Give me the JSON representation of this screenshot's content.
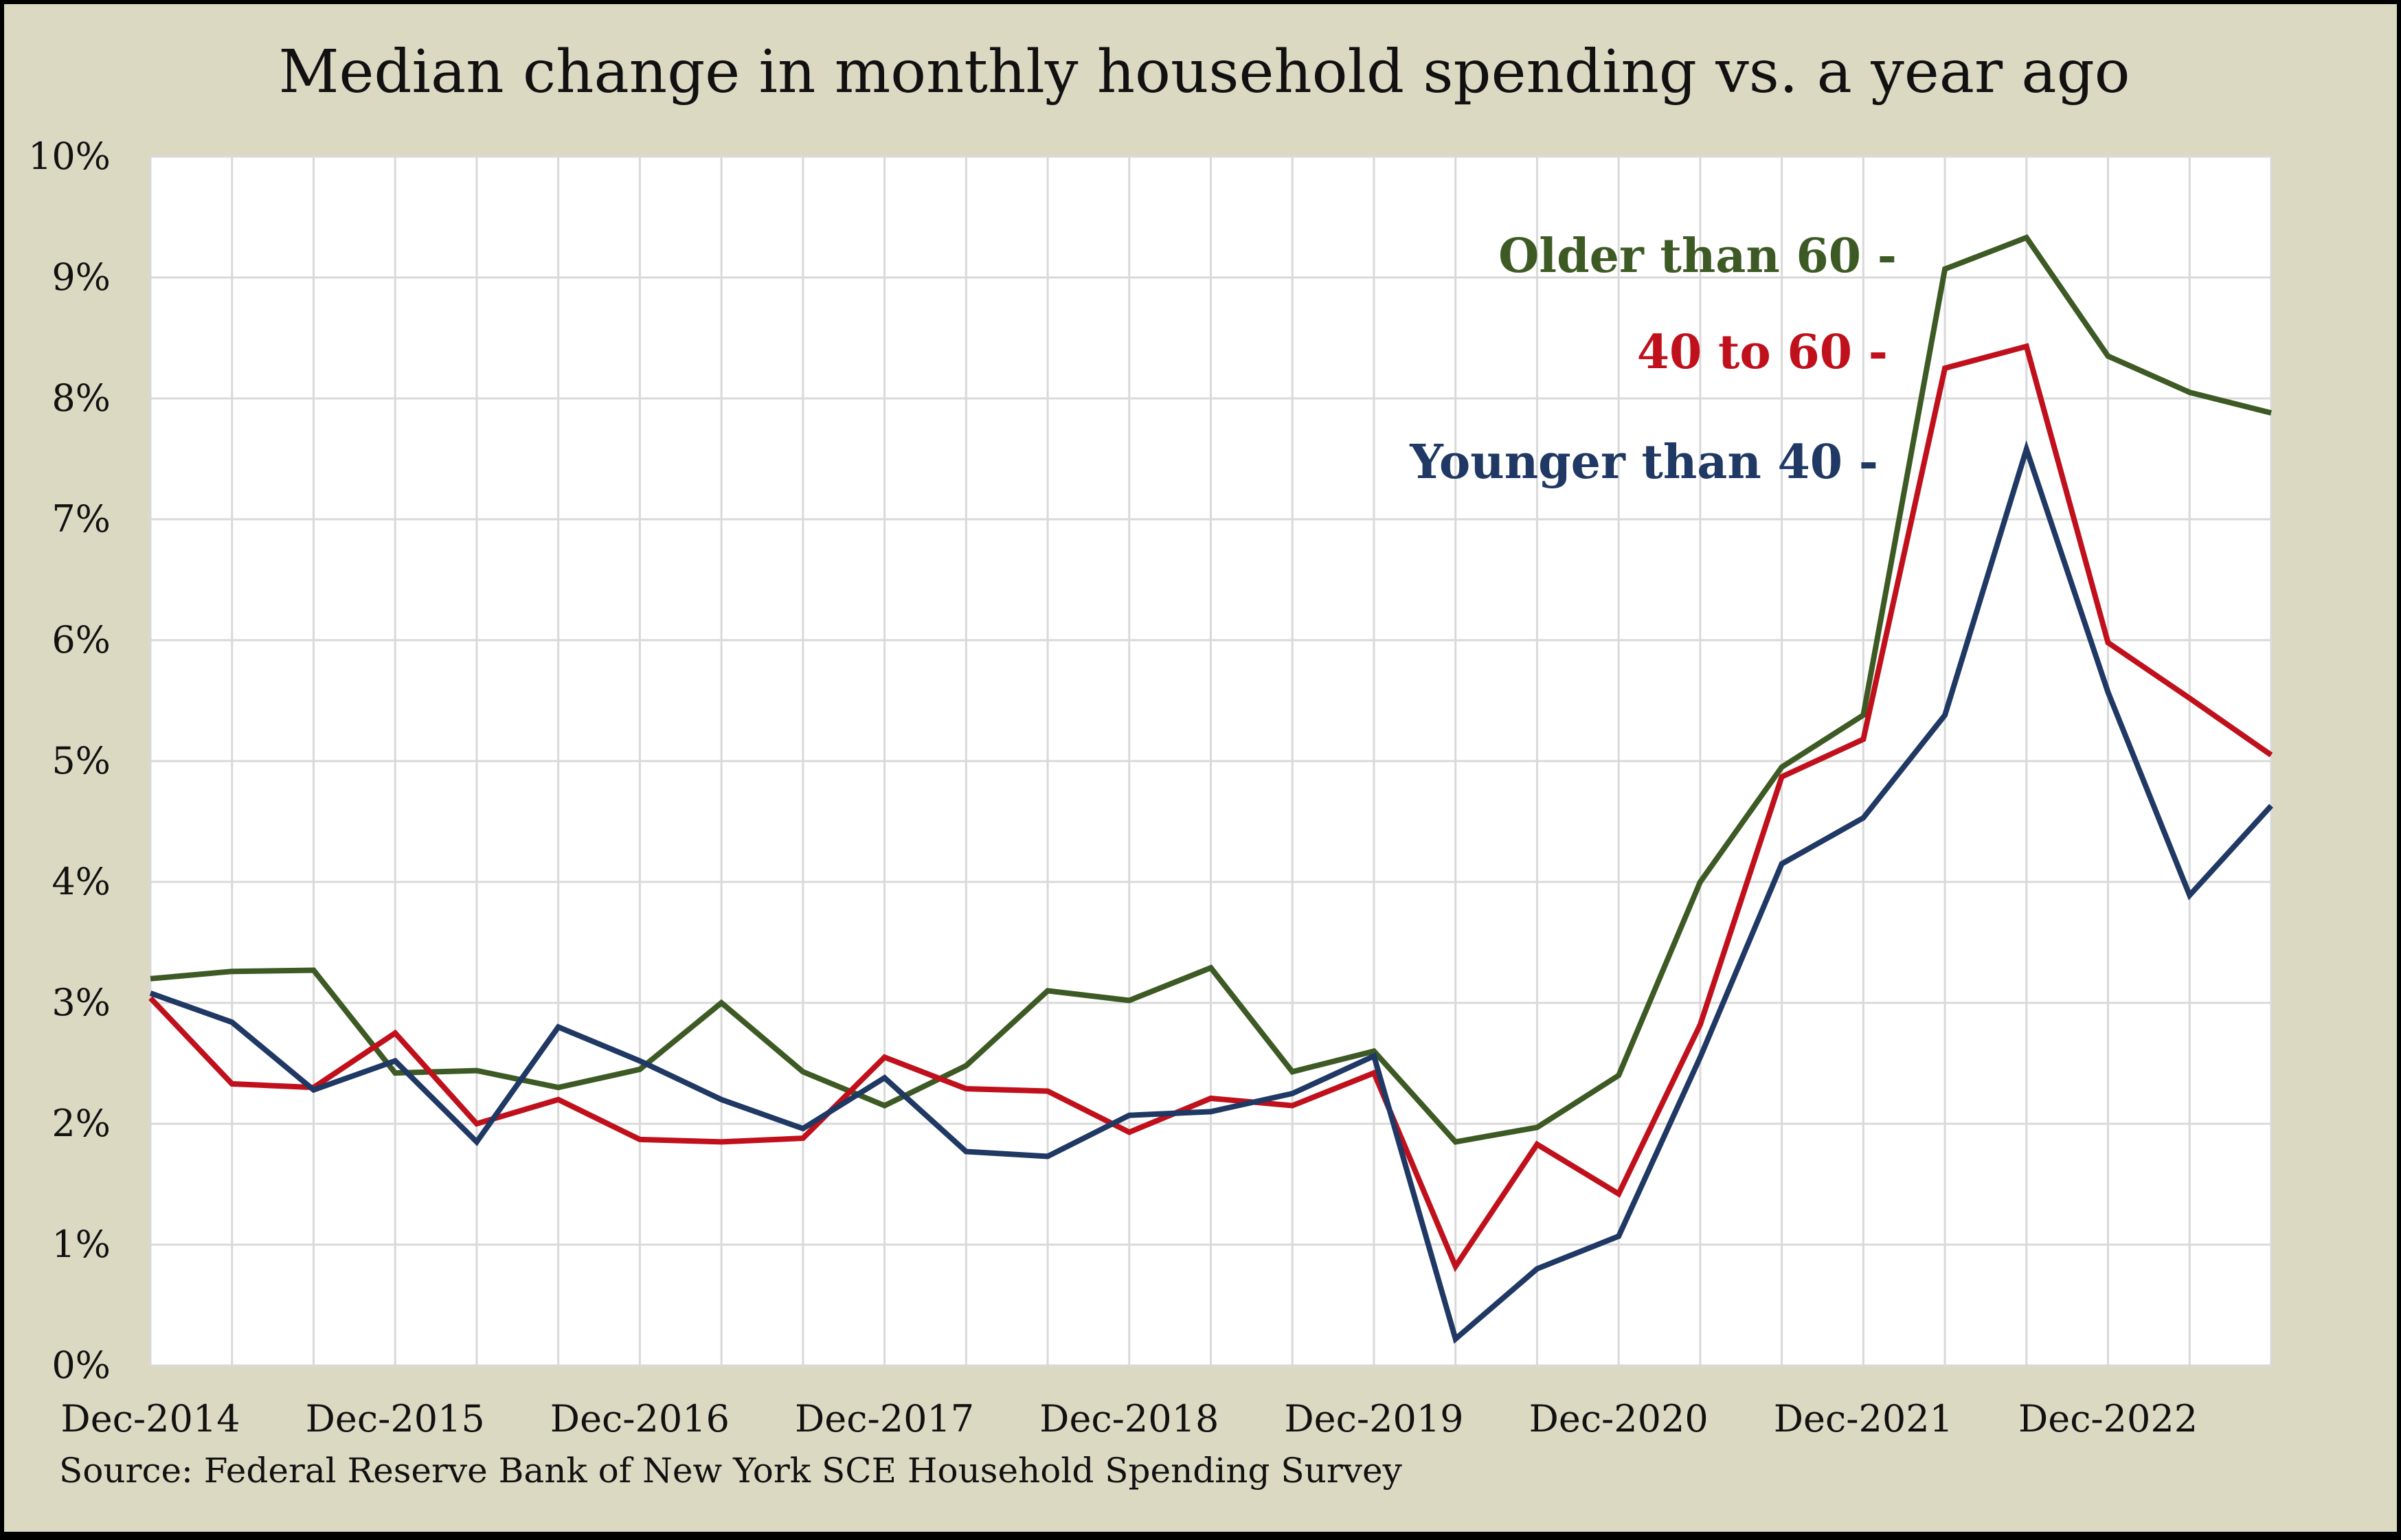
{
  "chart_data": {
    "type": "line",
    "title": "Median change in monthly household spending vs. a year ago",
    "source": "Source: Federal Reserve Bank of New York SCE Household Spending Survey",
    "x": [
      "Dec-2014",
      "Apr-2015",
      "Aug-2015",
      "Dec-2015",
      "Apr-2016",
      "Aug-2016",
      "Dec-2016",
      "Apr-2017",
      "Aug-2017",
      "Dec-2017",
      "Apr-2018",
      "Aug-2018",
      "Dec-2018",
      "Apr-2019",
      "Aug-2019",
      "Dec-2019",
      "Apr-2020",
      "Aug-2020",
      "Dec-2020",
      "Apr-2021",
      "Aug-2021",
      "Dec-2021",
      "Apr-2022",
      "Aug-2022",
      "Dec-2022",
      "Apr-2023",
      "Aug-2023"
    ],
    "x_tick_labels": [
      "Dec-2014",
      "Dec-2015",
      "Dec-2016",
      "Dec-2017",
      "Dec-2018",
      "Dec-2019",
      "Dec-2020",
      "Dec-2021",
      "Dec-2022"
    ],
    "y_tick_labels": [
      "0%",
      "1%",
      "2%",
      "3%",
      "4%",
      "5%",
      "6%",
      "7%",
      "8%",
      "9%",
      "10%"
    ],
    "ylim": [
      0,
      10
    ],
    "grid": true,
    "series": [
      {
        "name": "Older than 60 -",
        "color": "#3d5a24",
        "values": [
          3.2,
          3.26,
          3.27,
          2.42,
          2.44,
          2.3,
          2.45,
          3.0,
          2.43,
          2.15,
          2.48,
          3.1,
          3.02,
          3.29,
          2.43,
          2.6,
          1.85,
          1.97,
          2.4,
          4.0,
          4.95,
          5.38,
          9.07,
          9.33,
          8.35,
          8.05,
          7.88
        ]
      },
      {
        "name": "40 to 60 -",
        "color": "#c0101c",
        "values": [
          3.04,
          2.33,
          2.3,
          2.75,
          2.0,
          2.2,
          1.87,
          1.85,
          1.88,
          2.55,
          2.29,
          2.27,
          1.93,
          2.21,
          2.15,
          2.42,
          0.82,
          1.83,
          1.42,
          2.82,
          4.87,
          5.18,
          8.25,
          8.43,
          5.98,
          5.52,
          5.05
        ]
      },
      {
        "name": "Younger than 40 -",
        "color": "#1f3864",
        "values": [
          3.08,
          2.84,
          2.28,
          2.52,
          1.85,
          2.8,
          2.52,
          2.2,
          1.96,
          2.38,
          1.77,
          1.73,
          2.07,
          2.1,
          2.25,
          2.56,
          0.22,
          0.8,
          1.07,
          2.55,
          4.15,
          4.53,
          5.38,
          7.58,
          5.57,
          3.89,
          4.63
        ]
      }
    ]
  }
}
